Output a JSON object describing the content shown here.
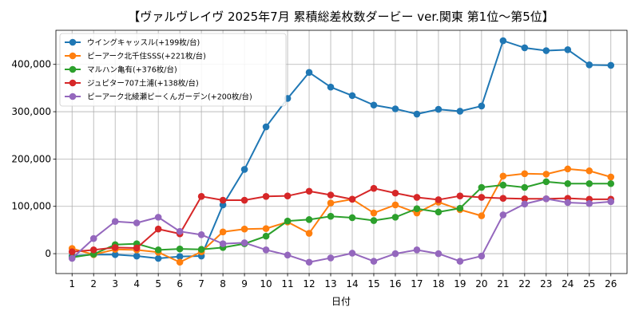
{
  "chart_data": {
    "type": "line",
    "title": "【ヴァルヴレイヴ 2025年7月  累積総差枚数ダービー ver.関東 第1位～第5位】",
    "xlabel": "日付",
    "ylabel": "",
    "x": [
      1,
      2,
      3,
      4,
      5,
      6,
      7,
      8,
      9,
      10,
      11,
      12,
      13,
      14,
      15,
      16,
      17,
      18,
      19,
      20,
      21,
      22,
      23,
      24,
      25,
      26
    ],
    "ylim": [
      -42000,
      472000
    ],
    "yticks": [
      0,
      100000,
      200000,
      300000,
      400000
    ],
    "ytick_labels": [
      "0",
      "100,000",
      "200,000",
      "300,000",
      "400,000"
    ],
    "grid": true,
    "legend_position": "top-left",
    "series": [
      {
        "name": "ウイングキャッスル(+199枚/台)",
        "color": "#1f77b4",
        "values": [
          -5000,
          -2000,
          -2000,
          -5000,
          -10000,
          -6000,
          -5000,
          103000,
          178000,
          268000,
          328000,
          383000,
          352000,
          334000,
          314000,
          306000,
          295000,
          305000,
          301000,
          312000,
          450000,
          435000,
          429000,
          431000,
          399000,
          398000
        ]
      },
      {
        "name": "ピーアーク北千住SSS(+221枚/台)",
        "color": "#ff7f0e",
        "values": [
          11000,
          -2000,
          9000,
          8000,
          3000,
          -18000,
          4000,
          46000,
          52000,
          53000,
          67000,
          43000,
          107000,
          115000,
          86000,
          103000,
          86000,
          109000,
          93000,
          80000,
          164000,
          169000,
          168000,
          179000,
          175000,
          162000
        ]
      },
      {
        "name": "マルハン亀有(+376枚/台)",
        "color": "#2ca02c",
        "values": [
          -8000,
          -1000,
          19000,
          21000,
          8000,
          10000,
          9000,
          13000,
          21000,
          37000,
          69000,
          72000,
          79000,
          76000,
          70000,
          77000,
          95000,
          88000,
          96000,
          140000,
          145000,
          140000,
          152000,
          148000,
          148000,
          148000
        ]
      },
      {
        "name": "ジュピター707土浦(+138枚/台)",
        "color": "#d62728",
        "values": [
          4000,
          8000,
          13000,
          12000,
          52000,
          42000,
          121000,
          113000,
          113000,
          121000,
          122000,
          132000,
          124000,
          115000,
          138000,
          128000,
          119000,
          114000,
          122000,
          119000,
          117000,
          116000,
          116000,
          117000,
          115000,
          115000
        ]
      },
      {
        "name": "ピーアーク北綾瀬ピーくんガーデン(+200枚/台)",
        "color": "#9467bd",
        "values": [
          -10000,
          32000,
          68000,
          65000,
          77000,
          47000,
          40000,
          21000,
          23000,
          8000,
          -3000,
          -18000,
          -9000,
          1000,
          -16000,
          0,
          8000,
          0,
          -16000,
          -5000,
          82000,
          105000,
          116000,
          108000,
          106000,
          110000
        ]
      }
    ]
  }
}
